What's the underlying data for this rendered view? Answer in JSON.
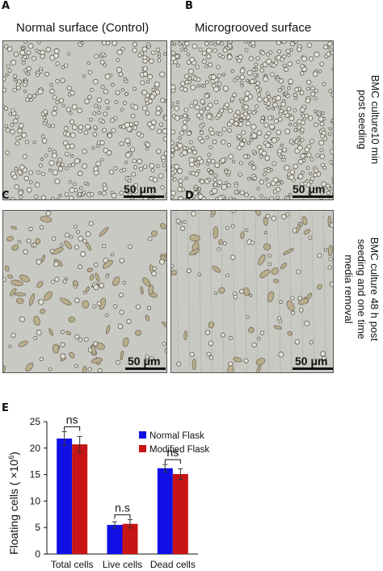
{
  "panels": {
    "a": {
      "letter": "A",
      "title": "Normal surface  (Control)",
      "scale": "50 μm"
    },
    "b": {
      "letter": "B",
      "title": "Microgrooved surface",
      "scale": "50 μm"
    },
    "c": {
      "letter": "C",
      "scale": "50 μm"
    },
    "d": {
      "letter": "D",
      "scale": "50 μm"
    },
    "e": {
      "letter": "E"
    }
  },
  "row_labels": {
    "top": [
      "BMC culture10 min",
      "post seeding"
    ],
    "bottom": [
      "BMC culture 48 h post",
      "seeding  and one time",
      "media  removal"
    ]
  },
  "colors": {
    "normal": "#1010e6",
    "modified": "#c81414",
    "micrograph_bg": "#c9c9c4"
  },
  "chart_data": {
    "type": "bar",
    "categories": [
      "Total cells",
      "Live cells",
      "Dead cells"
    ],
    "series": [
      {
        "name": "Normal Flask",
        "values": [
          21.8,
          5.5,
          16.2
        ],
        "errors": [
          1.3,
          0.6,
          0.7
        ],
        "color": "#1010e6"
      },
      {
        "name": "Modified Flask",
        "values": [
          20.7,
          5.7,
          15.1
        ],
        "errors": [
          1.5,
          0.8,
          1.0
        ],
        "color": "#c81414"
      }
    ],
    "ylabel": "Floating cells  ( ×10",
    "ylabel_sup": "6",
    "ylabel_end": ")",
    "ylim": [
      0,
      25
    ],
    "yticks": [
      0,
      5,
      10,
      15,
      20,
      25
    ],
    "annotations": [
      "ns",
      "n.s",
      "ns"
    ],
    "legend": "top-right"
  }
}
